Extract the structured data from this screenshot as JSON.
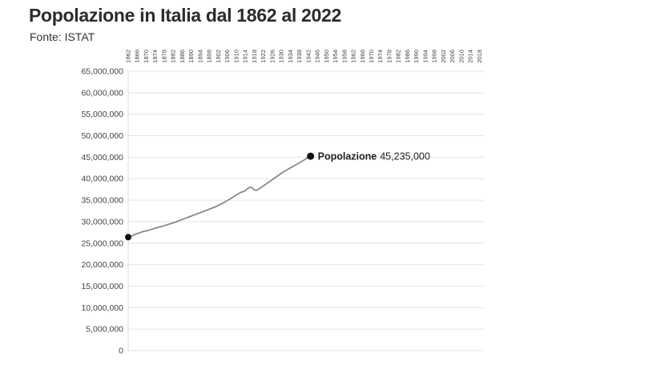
{
  "header": {
    "title": "Popolazione in Italia dal 1862 al 2022",
    "source": "Fonte: ISTAT"
  },
  "chart_data": {
    "type": "line",
    "title": "Popolazione in Italia dal 1862 al 2022",
    "xlabel": "",
    "ylabel": "",
    "xlim": [
      1862,
      2020
    ],
    "ylim": [
      0,
      65000000
    ],
    "grid": true,
    "x_ticks": [
      1862,
      1866,
      1870,
      1874,
      1878,
      1882,
      1886,
      1890,
      1894,
      1898,
      1902,
      1906,
      1910,
      1914,
      1918,
      1922,
      1926,
      1930,
      1934,
      1938,
      1942,
      1946,
      1950,
      1954,
      1958,
      1962,
      1966,
      1970,
      1974,
      1978,
      1982,
      1986,
      1990,
      1994,
      1998,
      2002,
      2006,
      2010,
      2014,
      2018
    ],
    "y_ticks": [
      0,
      5000000,
      10000000,
      15000000,
      20000000,
      25000000,
      30000000,
      35000000,
      40000000,
      45000000,
      50000000,
      55000000,
      60000000,
      65000000
    ],
    "y_tick_labels": [
      "0",
      "5,000,000",
      "10,000,000",
      "15,000,000",
      "20,000,000",
      "25,000,000",
      "30,000,000",
      "35,000,000",
      "40,000,000",
      "45,000,000",
      "50,000,000",
      "55,000,000",
      "60,000,000",
      "65,000,000"
    ],
    "line_color": "#8a8a8a",
    "series": [
      {
        "name": "Popolazione",
        "end_label": "45,235,000",
        "x": [
          1862,
          1865,
          1868,
          1871,
          1874,
          1877,
          1880,
          1883,
          1886,
          1889,
          1892,
          1895,
          1898,
          1901,
          1904,
          1907,
          1910,
          1912,
          1914,
          1915,
          1916,
          1917,
          1918,
          1919,
          1920,
          1922,
          1925,
          1928,
          1931,
          1934,
          1937,
          1940,
          1942,
          1943
        ],
        "y": [
          26400000,
          27000000,
          27600000,
          28000000,
          28500000,
          28900000,
          29400000,
          29900000,
          30500000,
          31100000,
          31700000,
          32300000,
          32900000,
          33500000,
          34300000,
          35200000,
          36200000,
          36800000,
          37200000,
          37700000,
          38000000,
          37900000,
          37400000,
          37300000,
          37600000,
          38300000,
          39400000,
          40500000,
          41600000,
          42500000,
          43400000,
          44300000,
          45000000,
          45235000
        ]
      }
    ]
  }
}
